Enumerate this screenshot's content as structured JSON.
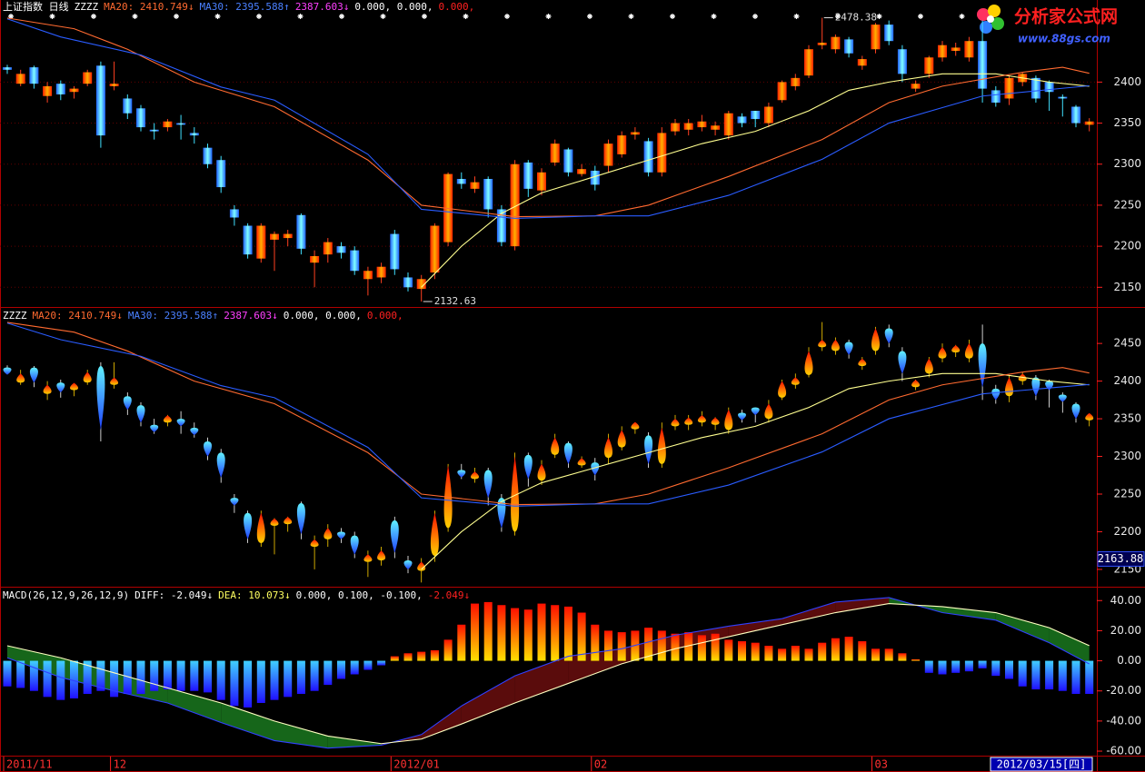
{
  "chart_data": [
    {
      "type": "candlestick",
      "header": [
        {
          "text": "上证指数 日线",
          "color": "#ffffff"
        },
        {
          "text": "ZZZZ",
          "color": "#ffffff"
        },
        {
          "text": "MA20: 2410.749↓",
          "color": "#ff6a30"
        },
        {
          "text": "MA30: 2395.588↑",
          "color": "#4a80ff"
        },
        {
          "text": "2387.603↓",
          "color": "#ff40ff"
        },
        {
          "text": "0.000, 0.000,",
          "color": "#ffffff"
        },
        {
          "text": "0.000,",
          "color": "#ff2020"
        }
      ],
      "open": [
        2418,
        2398,
        2418,
        2383,
        2398,
        2388,
        2398,
        2420,
        2395,
        2380,
        2368,
        2342,
        2345,
        2350,
        2338,
        2320,
        2305,
        2245,
        2225,
        2185,
        2208,
        2210,
        2238,
        2180,
        2190,
        2200,
        2195,
        2160,
        2162,
        2215,
        2162,
        2148,
        2168,
        2205,
        2282,
        2270,
        2282,
        2245,
        2200,
        2302,
        2268,
        2302,
        2318,
        2288,
        2292,
        2298,
        2312,
        2336,
        2328,
        2290,
        2340,
        2342,
        2345,
        2342,
        2335,
        2358,
        2365,
        2350,
        2378,
        2395,
        2408,
        2445,
        2440,
        2452,
        2420,
        2440,
        2470,
        2440,
        2392,
        2410,
        2430,
        2438,
        2430,
        2450,
        2390,
        2380,
        2400,
        2405,
        2400,
        2382,
        2370,
        2348
      ],
      "high": [
        2421,
        2415,
        2420,
        2400,
        2402,
        2395,
        2415,
        2425,
        2425,
        2385,
        2372,
        2350,
        2355,
        2360,
        2345,
        2325,
        2310,
        2250,
        2228,
        2228,
        2218,
        2220,
        2240,
        2195,
        2210,
        2205,
        2200,
        2175,
        2180,
        2220,
        2168,
        2165,
        2228,
        2290,
        2290,
        2285,
        2285,
        2250,
        2305,
        2305,
        2295,
        2330,
        2320,
        2300,
        2298,
        2330,
        2340,
        2345,
        2332,
        2345,
        2355,
        2355,
        2360,
        2352,
        2365,
        2362,
        2365,
        2375,
        2402,
        2410,
        2445,
        2478.38,
        2458,
        2455,
        2432,
        2472,
        2475,
        2445,
        2402,
        2432,
        2450,
        2448,
        2455,
        2475,
        2395,
        2408,
        2412,
        2408,
        2402,
        2385,
        2372,
        2356
      ],
      "low": [
        2410,
        2395,
        2392,
        2375,
        2378,
        2380,
        2395,
        2320,
        2390,
        2355,
        2340,
        2330,
        2340,
        2330,
        2325,
        2295,
        2265,
        2225,
        2185,
        2180,
        2170,
        2200,
        2190,
        2150,
        2180,
        2185,
        2165,
        2140,
        2155,
        2165,
        2145,
        2132.63,
        2160,
        2200,
        2270,
        2265,
        2235,
        2200,
        2195,
        2260,
        2262,
        2298,
        2285,
        2285,
        2268,
        2290,
        2308,
        2330,
        2285,
        2285,
        2335,
        2335,
        2340,
        2335,
        2330,
        2345,
        2345,
        2345,
        2375,
        2390,
        2405,
        2440,
        2435,
        2430,
        2415,
        2435,
        2445,
        2400,
        2388,
        2405,
        2425,
        2432,
        2425,
        2375,
        2370,
        2372,
        2395,
        2375,
        2365,
        2358,
        2345,
        2340
      ],
      "close": [
        2415,
        2410,
        2398,
        2395,
        2385,
        2392,
        2412,
        2335,
        2398,
        2362,
        2345,
        2340,
        2352,
        2348,
        2335,
        2300,
        2272,
        2235,
        2190,
        2225,
        2215,
        2215,
        2197,
        2188,
        2205,
        2192,
        2170,
        2170,
        2175,
        2172,
        2150,
        2160,
        2225,
        2288,
        2276,
        2278,
        2245,
        2205,
        2300,
        2270,
        2290,
        2325,
        2290,
        2294,
        2275,
        2325,
        2335,
        2339,
        2290,
        2338,
        2350,
        2350,
        2352,
        2347,
        2362,
        2350,
        2355,
        2370,
        2400,
        2405,
        2440,
        2448,
        2455,
        2435,
        2428,
        2470,
        2450,
        2410,
        2398,
        2430,
        2445,
        2442,
        2450,
        2392,
        2375,
        2405,
        2410,
        2380,
        2388,
        2380,
        2350,
        2352
      ],
      "up_color": "#ff4020",
      "down_color": "#40e0ff",
      "series": [
        {
          "color": "#ffff90",
          "x": [
            31,
            34,
            37,
            40,
            44,
            48,
            52,
            56,
            60,
            63,
            66,
            70,
            74,
            78,
            81
          ],
          "values": [
            2150,
            2200,
            2240,
            2265,
            2285,
            2305,
            2325,
            2340,
            2365,
            2390,
            2400,
            2410,
            2410,
            2400,
            2395
          ]
        },
        {
          "color": "#ff6a30",
          "x": [
            0,
            5,
            9,
            14,
            20,
            27,
            31,
            38,
            44,
            48,
            54,
            61,
            66,
            70,
            76,
            79,
            81
          ],
          "values": [
            2478,
            2465,
            2440,
            2400,
            2370,
            2305,
            2250,
            2236,
            2237,
            2250,
            2285,
            2330,
            2375,
            2395,
            2412,
            2418,
            2410.749
          ]
        },
        {
          "color": "#2a5cff",
          "x": [
            0,
            4,
            10,
            16,
            20,
            27,
            31,
            38,
            44,
            48,
            54,
            61,
            66,
            73,
            81
          ],
          "values": [
            2477,
            2455,
            2433,
            2394,
            2378,
            2312,
            2245,
            2234,
            2237,
            2237,
            2262,
            2306,
            2350,
            2383,
            2395.588
          ]
        }
      ],
      "ylim": [
        2126,
        2500
      ],
      "yticks": [
        2150,
        2200,
        2250,
        2300,
        2350,
        2400
      ],
      "grid": true,
      "annotations": [
        {
          "x": 61,
          "value": 2478.38
        },
        {
          "x": 31,
          "value": 2132.63
        }
      ],
      "watermark": [
        "分析家公式网",
        "www.88gs.com"
      ]
    },
    {
      "type": "flame",
      "header": [
        {
          "text": "ZZZZ",
          "color": "#ffffff"
        },
        {
          "text": "MA20: 2410.749↓",
          "color": "#ff6a30"
        },
        {
          "text": "MA30: 2395.588↑",
          "color": "#4a80ff"
        },
        {
          "text": "2387.603↓",
          "color": "#ff40ff"
        },
        {
          "text": "0.000, 0.000,",
          "color": "#ffffff"
        },
        {
          "text": "0.000,",
          "color": "#ff2020"
        }
      ],
      "ylim": [
        2127,
        2496
      ],
      "yticks": [
        2150,
        2200,
        2250,
        2300,
        2350,
        2400,
        2450
      ],
      "grid": false,
      "cursor_value": 2163.88
    },
    {
      "type": "macd",
      "header": [
        {
          "text": "MACD(26,12,9,26,12,9)",
          "color": "#ffffff"
        },
        {
          "text": "DIFF: -2.049↓",
          "color": "#ffffff"
        },
        {
          "text": "DEA: 10.073↓",
          "color": "#ffff60"
        },
        {
          "text": "0.000, 0.100, -0.100,",
          "color": "#ffffff"
        },
        {
          "text": "-2.049↓",
          "color": "#ff2020"
        }
      ],
      "values": [
        -17,
        -18,
        -20,
        -24,
        -26,
        -25,
        -22,
        -20,
        -24,
        -22,
        -22,
        -20,
        -19,
        -20,
        -20,
        -21,
        -26,
        -30,
        -31,
        -28,
        -26,
        -24,
        -22,
        -20,
        -16,
        -12,
        -9,
        -6,
        -3,
        3,
        5,
        6,
        7,
        14,
        24,
        38,
        39,
        37,
        35,
        34,
        38,
        37,
        36,
        32,
        24,
        20,
        19,
        20,
        22,
        20,
        18,
        19,
        17,
        18,
        14,
        13,
        12,
        10,
        8,
        10,
        8,
        12,
        15,
        16,
        13,
        8,
        8,
        5,
        1,
        -8,
        -9,
        -8,
        -7,
        -5,
        -10,
        -12,
        -17,
        -19,
        -19,
        -20,
        -22,
        -22
      ],
      "series": [
        {
          "color": "#3040ff",
          "x": [
            0,
            4,
            8,
            12,
            16,
            20,
            24,
            28,
            31,
            34,
            38,
            42,
            46,
            50,
            54,
            58,
            62,
            66,
            70,
            74,
            78,
            81
          ],
          "values": [
            2,
            -11,
            -20,
            -28,
            -41,
            -53,
            -58,
            -56,
            -49,
            -30,
            -10,
            3,
            8,
            17,
            23,
            28,
            39,
            42,
            32,
            27,
            12,
            -2.049
          ]
        },
        {
          "color": "#ffffc0",
          "x": [
            0,
            4,
            8,
            12,
            16,
            20,
            24,
            28,
            31,
            34,
            38,
            42,
            46,
            50,
            54,
            58,
            62,
            66,
            70,
            74,
            78,
            81
          ],
          "values": [
            10,
            2,
            -8,
            -18,
            -28,
            -40,
            -50,
            -55,
            -52,
            -42,
            -28,
            -15,
            -2,
            8,
            16,
            24,
            32,
            38,
            36,
            32,
            22,
            10.073
          ]
        }
      ],
      "ylim": [
        -63,
        48
      ],
      "yticks": [
        {
          "value": 40,
          "label": "40.00"
        },
        {
          "value": 20,
          "label": "20.00"
        },
        {
          "value": 0,
          "label": "0.00"
        },
        {
          "value": -20,
          "label": "-20.00"
        },
        {
          "value": -40,
          "label": "-40.00"
        },
        {
          "value": -60,
          "label": "-60.00"
        }
      ],
      "grid": false,
      "xticks": [
        {
          "value": 0,
          "label": "2011/11"
        },
        {
          "value": 8,
          "label": "12"
        },
        {
          "value": 29,
          "label": "2012/01"
        },
        {
          "value": 44,
          "label": "02"
        },
        {
          "value": 65,
          "label": "03"
        }
      ],
      "date_label": "2012/03/15[四]"
    }
  ]
}
